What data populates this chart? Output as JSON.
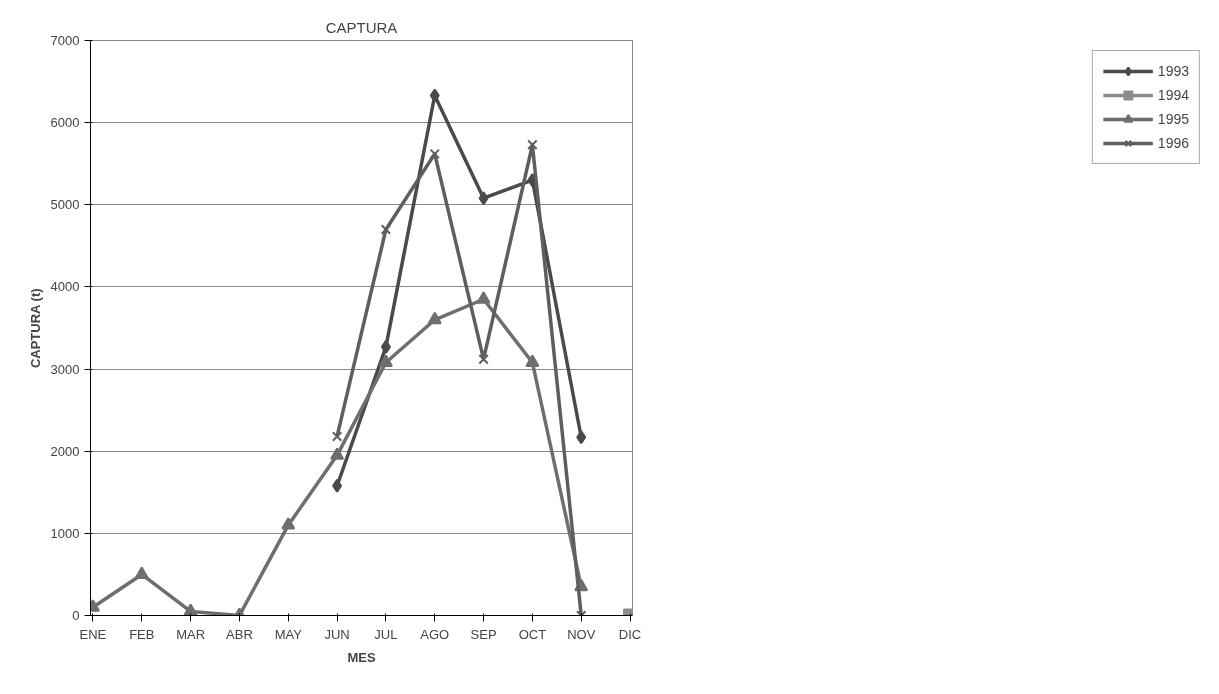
{
  "chart_data": {
    "type": "line",
    "title": "CAPTURA",
    "xlabel": "MES",
    "ylabel": "CAPTURA (t)",
    "categories": [
      "ENE",
      "FEB",
      "MAR",
      "ABR",
      "MAY",
      "JUN",
      "JUL",
      "AGO",
      "SEP",
      "OCT",
      "NOV",
      "DIC"
    ],
    "series": [
      {
        "name": "1993",
        "color": "#4a4a4a",
        "marker": "diamond",
        "values": [
          null,
          null,
          null,
          null,
          null,
          1580,
          3270,
          6330,
          5080,
          5300,
          2170,
          null
        ]
      },
      {
        "name": "1994",
        "color": "#8c8c8c",
        "marker": "square",
        "values": [
          null,
          null,
          null,
          null,
          null,
          null,
          null,
          null,
          null,
          null,
          null,
          0
        ]
      },
      {
        "name": "1995",
        "color": "#6e6e6e",
        "marker": "triangle",
        "values": [
          100,
          500,
          50,
          0,
          1100,
          1950,
          3080,
          3600,
          3850,
          3080,
          350,
          null
        ]
      },
      {
        "name": "1996",
        "color": "#5e5e5e",
        "marker": "cross",
        "values": [
          null,
          null,
          null,
          null,
          null,
          2180,
          4700,
          5620,
          3120,
          5730,
          0,
          null
        ]
      }
    ],
    "ylim": [
      0,
      7000
    ],
    "yticks": [
      0,
      1000,
      2000,
      3000,
      4000,
      5000,
      6000,
      7000
    ],
    "grid": "y",
    "legend": "right",
    "line_style": "solid"
  }
}
